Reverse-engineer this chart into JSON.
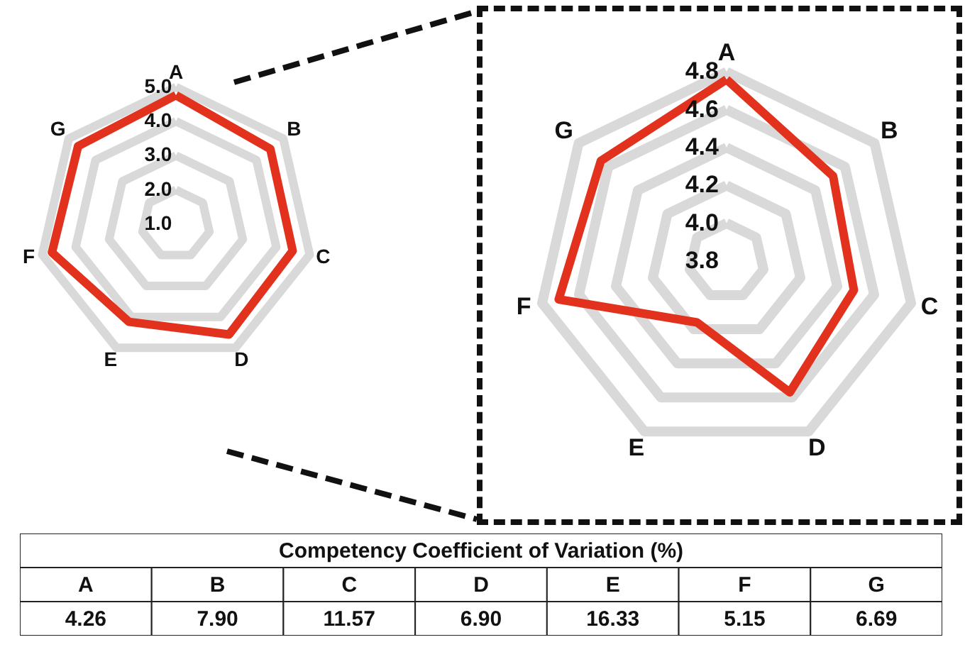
{
  "chart_data": [
    {
      "type": "radar",
      "categories": [
        "A",
        "B",
        "C",
        "D",
        "E",
        "F",
        "G"
      ],
      "ylim": [
        1,
        5
      ],
      "yticks": [
        {
          "value": 1,
          "label": "1.0"
        },
        {
          "value": 2,
          "label": "2.0"
        },
        {
          "value": 3,
          "label": "3.0"
        },
        {
          "value": 4,
          "label": "4.0"
        },
        {
          "value": 5,
          "label": "5.0"
        }
      ],
      "grid": true,
      "series": [
        {
          "color": "#e2311d",
          "values": [
            4.76,
            4.52,
            4.49,
            4.57,
            4.16,
            4.71,
            4.65
          ]
        }
      ]
    },
    {
      "type": "radar",
      "categories": [
        "A",
        "B",
        "C",
        "D",
        "E",
        "F",
        "G"
      ],
      "ylim": [
        3.8,
        4.8
      ],
      "yticks": [
        3.8,
        {
          "value": 4.0,
          "label": "4.0"
        },
        4.2,
        4.4,
        4.6,
        4.8
      ],
      "grid": true,
      "series": [
        {
          "color": "#e2311d",
          "values": [
            4.76,
            4.52,
            4.49,
            4.57,
            4.16,
            4.71,
            4.65
          ]
        }
      ]
    },
    {
      "type": "other",
      "title": "Competency Coefficient of Variation (%)",
      "categories": [
        "A",
        "B",
        "C",
        "D",
        "E",
        "F",
        "G"
      ],
      "values": [
        4.26,
        7.9,
        11.57,
        6.9,
        16.33,
        5.15,
        6.69
      ],
      "value_labels": [
        "4.26",
        "7.90",
        "11.57",
        "6.90",
        "16.33",
        "5.15",
        "6.69"
      ]
    }
  ]
}
